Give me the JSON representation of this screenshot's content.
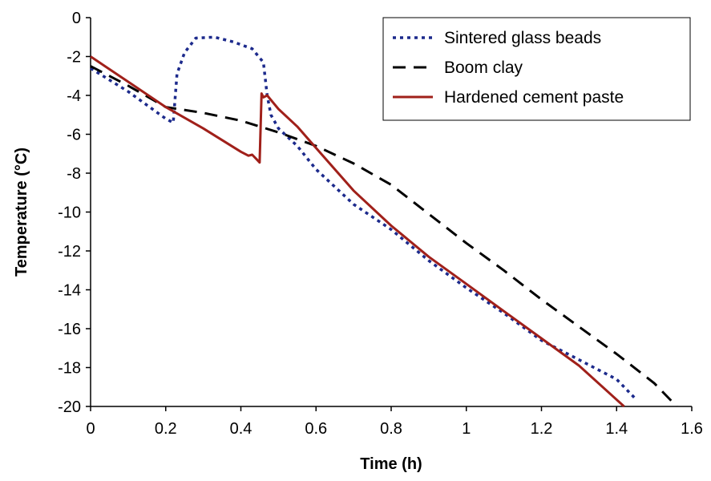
{
  "chart_data": {
    "type": "line",
    "title": "",
    "xlabel": "Time (h)",
    "ylabel": "Temperature (°C)",
    "xlim": [
      0,
      1.6
    ],
    "ylim": [
      -20,
      0
    ],
    "xticks": [
      0,
      0.2,
      0.4,
      0.6,
      0.8,
      1,
      1.2,
      1.4,
      1.6
    ],
    "yticks": [
      0,
      -2,
      -4,
      -6,
      -8,
      -10,
      -12,
      -14,
      -16,
      -18,
      -20
    ],
    "grid": false,
    "legend_position": "top-right",
    "series": [
      {
        "name": "Sintered glass beads",
        "color": "#1c2a8c",
        "style": "dotted",
        "x": [
          0,
          0.1,
          0.2,
          0.22,
          0.23,
          0.25,
          0.28,
          0.33,
          0.38,
          0.43,
          0.46,
          0.47,
          0.48,
          0.5,
          0.55,
          0.6,
          0.7,
          0.8,
          0.9,
          1.0,
          1.1,
          1.2,
          1.3,
          1.4,
          1.45
        ],
        "y": [
          -2.6,
          -3.8,
          -5.2,
          -5.4,
          -2.9,
          -1.8,
          -1.05,
          -1.0,
          -1.25,
          -1.6,
          -2.3,
          -4.0,
          -5.0,
          -5.7,
          -6.6,
          -7.8,
          -9.6,
          -10.9,
          -12.5,
          -13.9,
          -15.2,
          -16.6,
          -17.6,
          -18.6,
          -19.6
        ]
      },
      {
        "name": "Boom clay",
        "color": "#000000",
        "style": "dashed",
        "x": [
          0,
          0.1,
          0.2,
          0.3,
          0.4,
          0.5,
          0.6,
          0.7,
          0.8,
          0.9,
          1.0,
          1.1,
          1.2,
          1.3,
          1.4,
          1.5,
          1.56
        ],
        "y": [
          -2.5,
          -3.5,
          -4.6,
          -4.9,
          -5.3,
          -5.9,
          -6.6,
          -7.5,
          -8.6,
          -10.1,
          -11.6,
          -13.0,
          -14.5,
          -15.9,
          -17.3,
          -18.8,
          -20.0
        ]
      },
      {
        "name": "Hardened cement paste",
        "color": "#a0201a",
        "style": "solid",
        "x": [
          0,
          0.1,
          0.2,
          0.3,
          0.4,
          0.42,
          0.43,
          0.44,
          0.45,
          0.455,
          0.46,
          0.47,
          0.5,
          0.55,
          0.6,
          0.7,
          0.8,
          0.9,
          1.0,
          1.1,
          1.2,
          1.3,
          1.42
        ],
        "y": [
          -2.0,
          -3.3,
          -4.6,
          -5.7,
          -6.9,
          -7.1,
          -7.05,
          -7.25,
          -7.45,
          -3.9,
          -4.1,
          -4.0,
          -4.7,
          -5.6,
          -6.7,
          -8.9,
          -10.7,
          -12.3,
          -13.7,
          -15.1,
          -16.5,
          -17.9,
          -20.0
        ]
      }
    ]
  }
}
